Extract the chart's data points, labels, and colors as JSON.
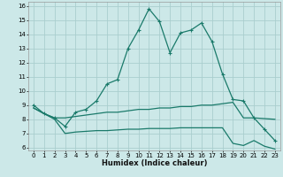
{
  "xlabel": "Humidex (Indice chaleur)",
  "bg_color": "#cce8e8",
  "grid_color": "#aacece",
  "line_color": "#1a7a6a",
  "xlim": [
    -0.5,
    23.5
  ],
  "ylim": [
    5.8,
    16.3
  ],
  "xticks": [
    0,
    1,
    2,
    3,
    4,
    5,
    6,
    7,
    8,
    9,
    10,
    11,
    12,
    13,
    14,
    15,
    16,
    17,
    18,
    19,
    20,
    21,
    22,
    23
  ],
  "yticks": [
    6,
    7,
    8,
    9,
    10,
    11,
    12,
    13,
    14,
    15,
    16
  ],
  "line1_x": [
    0,
    1,
    2,
    3,
    4,
    5,
    6,
    7,
    8,
    9,
    10,
    11,
    12,
    13,
    14,
    15,
    16,
    17,
    18,
    19,
    20,
    21,
    22,
    23
  ],
  "line1_y": [
    9.0,
    8.4,
    8.1,
    7.5,
    8.5,
    8.7,
    9.3,
    10.5,
    10.8,
    13.0,
    14.3,
    15.8,
    14.9,
    12.7,
    14.1,
    14.3,
    14.8,
    13.5,
    11.2,
    9.4,
    9.3,
    8.1,
    7.3,
    6.5
  ],
  "line2_x": [
    0,
    1,
    2,
    3,
    4,
    5,
    6,
    7,
    8,
    9,
    10,
    11,
    12,
    13,
    14,
    15,
    16,
    17,
    18,
    19,
    20,
    21,
    22,
    23
  ],
  "line2_y": [
    8.8,
    8.4,
    8.1,
    8.1,
    8.2,
    8.3,
    8.4,
    8.5,
    8.5,
    8.6,
    8.7,
    8.7,
    8.8,
    8.8,
    8.9,
    8.9,
    9.0,
    9.0,
    9.1,
    9.2,
    8.1,
    8.1,
    8.05,
    8.0
  ],
  "line3_x": [
    0,
    1,
    2,
    3,
    4,
    5,
    6,
    7,
    8,
    9,
    10,
    11,
    12,
    13,
    14,
    15,
    16,
    17,
    18,
    19,
    20,
    21,
    22,
    23
  ],
  "line3_y": [
    8.8,
    8.4,
    8.0,
    7.0,
    7.1,
    7.15,
    7.2,
    7.2,
    7.25,
    7.3,
    7.3,
    7.35,
    7.35,
    7.35,
    7.4,
    7.4,
    7.4,
    7.4,
    7.4,
    6.3,
    6.15,
    6.5,
    6.1,
    5.9
  ]
}
